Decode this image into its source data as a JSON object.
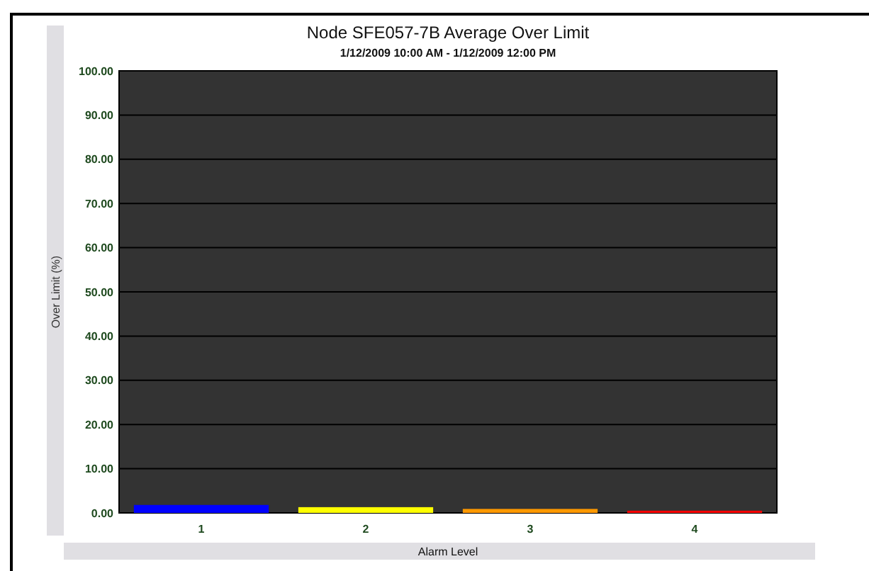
{
  "chart_data": {
    "type": "bar",
    "title": "Node SFE057-7B Average Over Limit",
    "subtitle": "1/12/2009 10:00 AM - 1/12/2009 12:00 PM",
    "xlabel": "Alarm Level",
    "ylabel": "Over Limit (%)",
    "categories": [
      "1",
      "2",
      "3",
      "4"
    ],
    "values": [
      1.8,
      1.3,
      0.9,
      0.5
    ],
    "colors": [
      "#0000ff",
      "#ffff00",
      "#ff9900",
      "#ff0000"
    ],
    "ylim": [
      0,
      100
    ],
    "yticks": [
      {
        "value": 0,
        "label": "0.00"
      },
      {
        "value": 10,
        "label": "10.00"
      },
      {
        "value": 20,
        "label": "20.00"
      },
      {
        "value": 30,
        "label": "30.00"
      },
      {
        "value": 40,
        "label": "40.00"
      },
      {
        "value": 50,
        "label": "50.00"
      },
      {
        "value": 60,
        "label": "60.00"
      },
      {
        "value": 70,
        "label": "70.00"
      },
      {
        "value": 80,
        "label": "80.00"
      },
      {
        "value": 90,
        "label": "90.00"
      },
      {
        "value": 100,
        "label": "100.00"
      }
    ],
    "grid": "y"
  }
}
